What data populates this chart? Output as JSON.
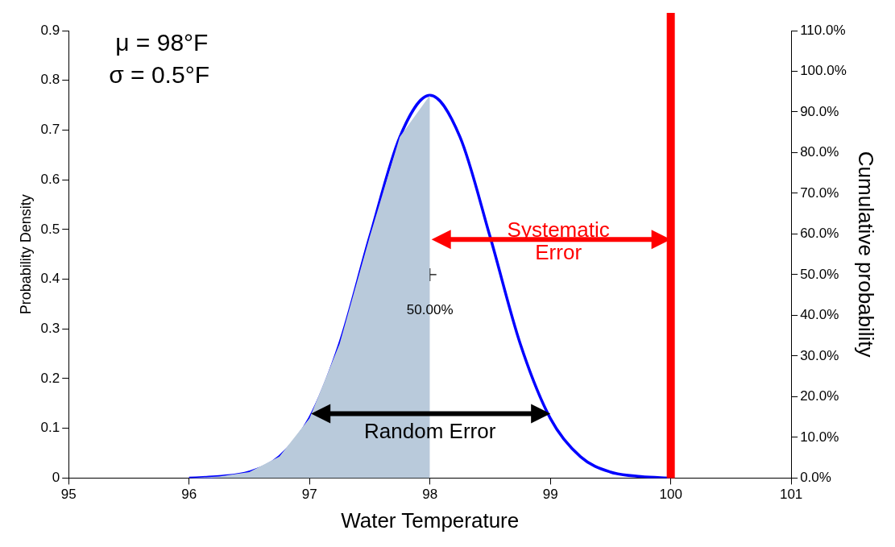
{
  "chart_data": {
    "type": "line",
    "xlabel": "Water Temperature",
    "ylabel": "Probability Density",
    "y2label": "Cumulative probability",
    "xlim": [
      95,
      101
    ],
    "xticks": [
      95,
      96,
      97,
      98,
      99,
      100,
      101
    ],
    "ylim": [
      0,
      0.9
    ],
    "yticks": [
      0,
      0.1,
      0.2,
      0.3,
      0.4,
      0.5,
      0.6,
      0.7,
      0.8,
      0.9
    ],
    "y2lim": [
      0,
      110
    ],
    "y2ticks": [
      {
        "value": 0,
        "label": "0.0%"
      },
      {
        "value": 10,
        "label": "10.0%"
      },
      {
        "value": 20,
        "label": "20.0%"
      },
      {
        "value": 30,
        "label": "30.0%"
      },
      {
        "value": 40,
        "label": "40.0%"
      },
      {
        "value": 50,
        "label": "50.0%"
      },
      {
        "value": 60,
        "label": "60.0%"
      },
      {
        "value": 70,
        "label": "70.0%"
      },
      {
        "value": 80,
        "label": "80.0%"
      },
      {
        "value": 90,
        "label": "90.0%"
      },
      {
        "value": 100,
        "label": "100.0%"
      },
      {
        "value": 110,
        "label": "110.0%"
      }
    ],
    "series": [
      {
        "type": "area",
        "color": "#b9cadb",
        "x": [
          96,
          96.25,
          96.5,
          96.75,
          97,
          97.25,
          97.5,
          97.75,
          98
        ],
        "values": [
          0,
          0.003,
          0.012,
          0.043,
          0.12,
          0.27,
          0.485,
          0.686,
          0.77
        ]
      },
      {
        "type": "line",
        "color": "#0000ff",
        "x": [
          96,
          96.25,
          96.5,
          96.75,
          97,
          97.25,
          97.5,
          97.75,
          98,
          98.25,
          98.5,
          98.75,
          99,
          99.25,
          99.5,
          99.75,
          100
        ],
        "values": [
          0,
          0.003,
          0.012,
          0.043,
          0.12,
          0.27,
          0.485,
          0.686,
          0.77,
          0.686,
          0.485,
          0.27,
          0.12,
          0.043,
          0.012,
          0.003,
          0
        ]
      },
      {
        "type": "scatter",
        "axis": "y2",
        "marker": "cross",
        "color": "#000000",
        "x": [
          98
        ],
        "values": [
          50
        ],
        "value_labels": [
          "50.00%"
        ]
      }
    ],
    "ref_lines": [
      {
        "axis": "x",
        "value": 100,
        "color": "#ff0000"
      }
    ],
    "annotations": [
      "μ = 98°F",
      "σ = 0.5°F",
      "Systematic Error",
      "Random Error"
    ],
    "grid": false,
    "legend": false
  }
}
